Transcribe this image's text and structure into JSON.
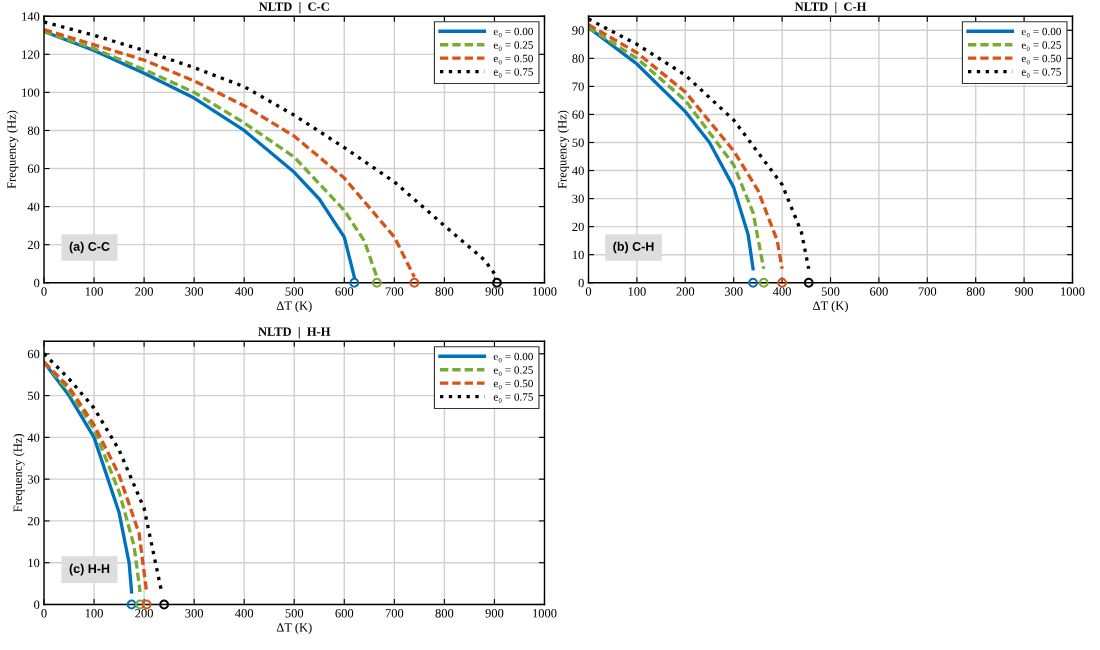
{
  "chart_data": [
    {
      "type": "line",
      "title": "NLTD  |  C-C",
      "xlabel": "ΔT (K)",
      "ylabel": "Frequency (Hz)",
      "xlim": [
        0,
        1000
      ],
      "xticks": [
        0,
        100,
        200,
        300,
        400,
        500,
        600,
        700,
        800,
        900,
        1000
      ],
      "ylim": [
        0,
        140
      ],
      "yticks": [
        0,
        20,
        40,
        60,
        80,
        100,
        120,
        140
      ],
      "grid": true,
      "legend": "top right",
      "annotations": [
        "(a) C-C"
      ],
      "series": [
        {
          "name": "e₀ = 0.00",
          "color": "#0072bd",
          "line_style": "solid",
          "x": [
            0,
            100,
            200,
            300,
            400,
            500,
            550,
            600,
            620
          ],
          "values": [
            132,
            122,
            110,
            97,
            80,
            58,
            44,
            24,
            3
          ]
        },
        {
          "name": "e₀ = 0.25",
          "color": "#77ac30",
          "line_style": "dashed",
          "x": [
            0,
            100,
            200,
            300,
            400,
            500,
            600,
            640,
            665
          ],
          "values": [
            132,
            123,
            112,
            100,
            84,
            66,
            38,
            22,
            3
          ]
        },
        {
          "name": "e₀ = 0.50",
          "color": "#d95319",
          "line_style": "dashed",
          "x": [
            0,
            100,
            200,
            300,
            400,
            500,
            600,
            700,
            740
          ],
          "values": [
            133,
            125,
            117,
            106,
            93,
            77,
            55,
            24,
            3
          ]
        },
        {
          "name": "e₀ = 0.75",
          "color": "#000000",
          "line_style": "dotted",
          "x": [
            0,
            100,
            200,
            300,
            400,
            500,
            600,
            700,
            800,
            880,
            905
          ],
          "values": [
            137,
            130,
            122,
            113,
            103,
            88,
            71,
            53,
            30,
            12,
            3
          ]
        },
        {
          "type": "scatter",
          "marker": "circle",
          "colors": [
            "#0072bd",
            "#77ac30",
            "#d95319",
            "#000000"
          ],
          "x": [
            620,
            665,
            740,
            905
          ],
          "values": [
            0,
            0,
            0,
            0
          ]
        }
      ]
    },
    {
      "type": "line",
      "title": "NLTD  |  C-H",
      "xlabel": "ΔT (K)",
      "ylabel": "Frequency (Hz)",
      "xlim": [
        0,
        1000
      ],
      "xticks": [
        0,
        100,
        200,
        300,
        400,
        500,
        600,
        700,
        800,
        900,
        1000
      ],
      "ylim": [
        0,
        95
      ],
      "yticks": [
        0,
        10,
        20,
        30,
        40,
        50,
        60,
        70,
        80,
        90
      ],
      "grid": true,
      "legend": "top right",
      "annotations": [
        "(b) C-H"
      ],
      "series": [
        {
          "name": "e₀ = 0.00",
          "color": "#0072bd",
          "line_style": "solid",
          "x": [
            0,
            100,
            200,
            250,
            300,
            330,
            340
          ],
          "values": [
            91,
            78,
            61,
            50,
            34,
            17,
            5
          ]
        },
        {
          "name": "e₀ = 0.25",
          "color": "#77ac30",
          "line_style": "dashed",
          "x": [
            0,
            100,
            200,
            300,
            340,
            362
          ],
          "values": [
            91,
            80,
            65,
            42,
            25,
            5
          ]
        },
        {
          "name": "e₀ = 0.50",
          "color": "#d95319",
          "line_style": "dashed",
          "x": [
            0,
            100,
            200,
            300,
            350,
            390,
            400
          ],
          "values": [
            92,
            82,
            68,
            47,
            33,
            15,
            5
          ]
        },
        {
          "name": "e₀ = 0.75",
          "color": "#000000",
          "line_style": "dotted",
          "x": [
            0,
            100,
            200,
            300,
            400,
            440,
            455
          ],
          "values": [
            94,
            85,
            74,
            58,
            35,
            18,
            5
          ]
        },
        {
          "type": "scatter",
          "marker": "circle",
          "colors": [
            "#0072bd",
            "#77ac30",
            "#d95319",
            "#000000"
          ],
          "x": [
            340,
            362,
            400,
            455
          ],
          "values": [
            0,
            0,
            0,
            0
          ]
        }
      ]
    },
    {
      "type": "line",
      "title": "NLTD  |  H-H",
      "xlabel": "ΔT (K)",
      "ylabel": "Frequency (Hz)",
      "xlim": [
        0,
        1000
      ],
      "xticks": [
        0,
        100,
        200,
        300,
        400,
        500,
        600,
        700,
        800,
        900,
        1000
      ],
      "ylim": [
        0,
        63
      ],
      "yticks": [
        0,
        10,
        20,
        30,
        40,
        50,
        60
      ],
      "grid": true,
      "legend": "top right",
      "annotations": [
        "(c) H-H"
      ],
      "series": [
        {
          "name": "e₀ = 0.00",
          "color": "#0072bd",
          "line_style": "solid",
          "x": [
            0,
            50,
            100,
            150,
            170,
            175
          ],
          "values": [
            58,
            50,
            40,
            22,
            10,
            3
          ]
        },
        {
          "name": "e₀ = 0.25",
          "color": "#77ac30",
          "line_style": "dashed",
          "x": [
            0,
            50,
            100,
            150,
            180,
            192
          ],
          "values": [
            58,
            51,
            42,
            27,
            14,
            3
          ]
        },
        {
          "name": "e₀ = 0.50",
          "color": "#d95319",
          "line_style": "dashed",
          "x": [
            0,
            50,
            100,
            150,
            190,
            205
          ],
          "values": [
            58,
            52,
            43,
            31,
            17,
            3
          ]
        },
        {
          "name": "e₀ = 0.75",
          "color": "#000000",
          "line_style": "dotted",
          "x": [
            0,
            50,
            100,
            150,
            200,
            235
          ],
          "values": [
            60,
            54,
            47,
            37,
            23,
            3
          ]
        },
        {
          "type": "scatter",
          "marker": "circle",
          "colors": [
            "#0072bd",
            "#77ac30",
            "#d95319",
            "#000000"
          ],
          "x": [
            175,
            192,
            205,
            240
          ],
          "values": [
            0,
            0,
            0,
            0
          ]
        }
      ]
    }
  ]
}
